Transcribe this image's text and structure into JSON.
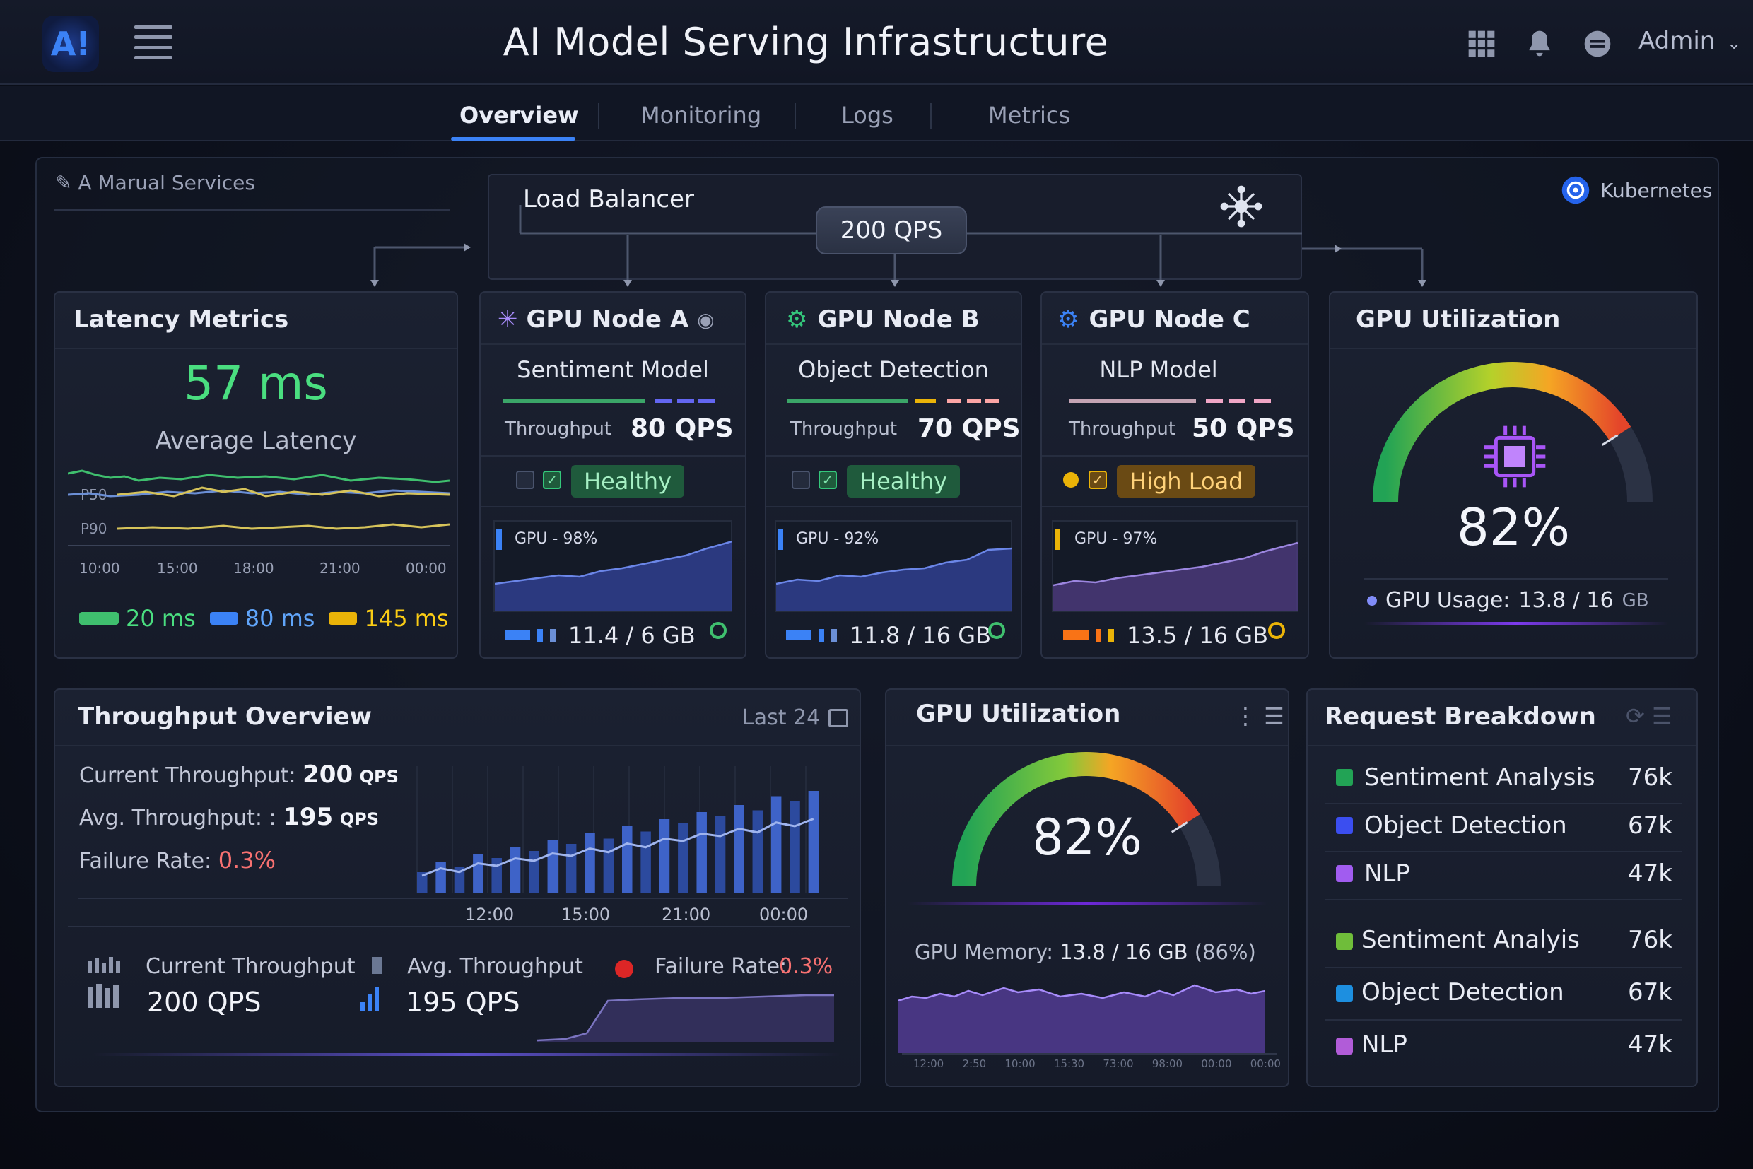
{
  "header": {
    "logo": "A!",
    "title": "AI Model Serving Infrastructure",
    "user": "Admin",
    "icons": [
      "grid-icon",
      "bell-icon",
      "chat-icon",
      "chevron-down-icon"
    ]
  },
  "tabs": [
    {
      "label": "Overview",
      "active": true
    },
    {
      "label": "Monitoring",
      "active": false
    },
    {
      "label": "Logs",
      "active": false
    },
    {
      "label": "Metrics",
      "active": false
    }
  ],
  "topology": {
    "services_label": "A Marual Services",
    "load_balancer": "Load Balancer",
    "qps": "200 QPS",
    "platform": "Kubernetes"
  },
  "latency": {
    "title": "Latency Metrics",
    "value": "57 ms",
    "subtitle": "Average Latency",
    "series_labels": [
      "P50",
      "P90"
    ],
    "times": [
      "10:00",
      "15:00",
      "18:00",
      "21:00",
      "00:00"
    ],
    "legend": [
      {
        "label": "20 ms",
        "color": "#3fbf6e"
      },
      {
        "label": "80 ms",
        "color": "#3b82f6"
      },
      {
        "label": "145 ms",
        "color": "#eab308"
      }
    ]
  },
  "nodes": [
    {
      "title": "GPU Node A",
      "model": "Sentiment Model",
      "throughput_label": "Throughput",
      "throughput": "80 QPS",
      "status": "Healthy",
      "gpu": "GPU - 98%",
      "memory": "11.4 / 6 GB",
      "accent": "#3b82f6"
    },
    {
      "title": "GPU Node B",
      "model": "Object Detection",
      "throughput_label": "Throughput",
      "throughput": "70 QPS",
      "status": "Healthy",
      "gpu": "GPU - 92%",
      "memory": "11.8 / 16 GB",
      "accent": "#3b82f6"
    },
    {
      "title": "GPU Node C",
      "model": "NLP Model",
      "throughput_label": "Throughput",
      "throughput": "50 QPS",
      "status": "High Load",
      "gpu": "GPU - 97%",
      "memory": "13.5 / 16 GB",
      "accent": "#f59e0b"
    }
  ],
  "gpu_util_top": {
    "title": "GPU Utilization",
    "percent": 82,
    "value": "82%",
    "usage_label": "GPU Usage:",
    "usage_value": "13.8 / 16",
    "usage_unit": "GB"
  },
  "throughput": {
    "title": "Throughput Overview",
    "range": "Last 24",
    "current_label": "Current Throughput:",
    "current_value": "200",
    "avg_label": "Avg. Throughput: :",
    "avg_value": "195",
    "unit": "QPS",
    "failure_label": "Failure Rate:",
    "failure_value": "0.3%",
    "times": [
      "12:00",
      "15:00",
      "21:00",
      "00:00"
    ],
    "bars": [
      12,
      18,
      15,
      22,
      20,
      26,
      24,
      30,
      28,
      34,
      31,
      38,
      35,
      42,
      40,
      46,
      44,
      50,
      47,
      55,
      52,
      58
    ],
    "summary": [
      {
        "label": "Current Throughput",
        "value": "200 QPS"
      },
      {
        "label": "Avg. Throughput",
        "value": "195 QPS"
      },
      {
        "label": "Failure Rate:",
        "value": "0.3%"
      }
    ]
  },
  "gpu_util_mid": {
    "title": "GPU Utilization",
    "percent": 82,
    "value": "82%",
    "memory_label": "GPU Memory:",
    "memory_value": "13.8 / 16 GB",
    "memory_pct": "(86%)",
    "times": [
      "12:00",
      "2:50",
      "10:00",
      "15:30",
      "73:00",
      "98:00",
      "00:00",
      "00:00"
    ]
  },
  "requests": {
    "title": "Request Breakdown",
    "rows": [
      {
        "label": "Sentiment Analysis",
        "value": "76k",
        "color": "#22a355"
      },
      {
        "label": "Object Detection",
        "value": "67k",
        "color": "#3b4ef0"
      },
      {
        "label": "NLP",
        "value": "47k",
        "color": "#a15cf0"
      },
      {
        "label": "Sentiment Analyis",
        "value": "76k",
        "color": "#6fbd3a"
      },
      {
        "label": "Object Detection",
        "value": "67k",
        "color": "#1d8fe0"
      },
      {
        "label": "NLP",
        "value": "47k",
        "color": "#b15cd8"
      }
    ]
  }
}
